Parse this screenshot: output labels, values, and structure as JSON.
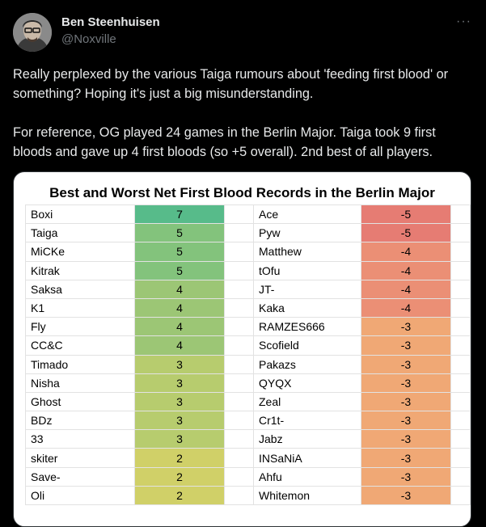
{
  "tweet": {
    "author_name": "Ben Steenhuisen",
    "handle": "@Noxville",
    "paragraph_1": "Really perplexed by the various Taiga rumours about 'feeding first blood' or something? Hoping it's just a big misunderstanding.",
    "paragraph_2": "For reference, OG played 24 games in the Berlin Major. Taiga took 9 first bloods and gave up 4 first bloods (so +5 overall). 2nd best of all players."
  },
  "more_icon": "more-horizontal-icon",
  "sheet": {
    "title": "Best and Worst Net First Blood Records in the Berlin Major",
    "best": [
      {
        "player": "Boxi",
        "net": "7",
        "color": "#57bb8a"
      },
      {
        "player": "Taiga",
        "net": "5",
        "color": "#83c37c"
      },
      {
        "player": "MiCKe",
        "net": "5",
        "color": "#83c37c"
      },
      {
        "player": "Kitrak",
        "net": "5",
        "color": "#83c37c"
      },
      {
        "player": "Saksa",
        "net": "4",
        "color": "#9cc675"
      },
      {
        "player": "K1",
        "net": "4",
        "color": "#9cc675"
      },
      {
        "player": "Fly",
        "net": "4",
        "color": "#9cc675"
      },
      {
        "player": "CC&C",
        "net": "4",
        "color": "#9cc675"
      },
      {
        "player": "Timado",
        "net": "3",
        "color": "#b7cc6e"
      },
      {
        "player": "Nisha",
        "net": "3",
        "color": "#b7cc6e"
      },
      {
        "player": "Ghost",
        "net": "3",
        "color": "#b7cc6e"
      },
      {
        "player": "BDz",
        "net": "3",
        "color": "#b7cc6e"
      },
      {
        "player": "33",
        "net": "3",
        "color": "#b7cc6e"
      },
      {
        "player": "skiter",
        "net": "2",
        "color": "#d0d068"
      },
      {
        "player": "Save-",
        "net": "2",
        "color": "#d0d068"
      },
      {
        "player": "Oli",
        "net": "2",
        "color": "#d0d068"
      }
    ],
    "worst": [
      {
        "player": "Ace",
        "net": "-5",
        "color": "#e67c73"
      },
      {
        "player": "Pyw",
        "net": "-5",
        "color": "#e67c73"
      },
      {
        "player": "Matthew",
        "net": "-4",
        "color": "#eb8f75"
      },
      {
        "player": "tOfu",
        "net": "-4",
        "color": "#eb8f75"
      },
      {
        "player": "JT-",
        "net": "-4",
        "color": "#eb8f75"
      },
      {
        "player": "Kaka",
        "net": "-4",
        "color": "#eb8f75"
      },
      {
        "player": "RAMZES666",
        "net": "-3",
        "color": "#f0a875"
      },
      {
        "player": "Scofield",
        "net": "-3",
        "color": "#f0a875"
      },
      {
        "player": "Pakazs",
        "net": "-3",
        "color": "#f0a875"
      },
      {
        "player": "QYQX",
        "net": "-3",
        "color": "#f0a875"
      },
      {
        "player": "Zeal",
        "net": "-3",
        "color": "#f0a875"
      },
      {
        "player": "Cr1t-",
        "net": "-3",
        "color": "#f0a875"
      },
      {
        "player": "Jabz",
        "net": "-3",
        "color": "#f0a875"
      },
      {
        "player": "INSaNiA",
        "net": "-3",
        "color": "#f0a875"
      },
      {
        "player": "Ahfu",
        "net": "-3",
        "color": "#f0a875"
      },
      {
        "player": "Whitemon",
        "net": "-3",
        "color": "#f0a875"
      }
    ]
  }
}
